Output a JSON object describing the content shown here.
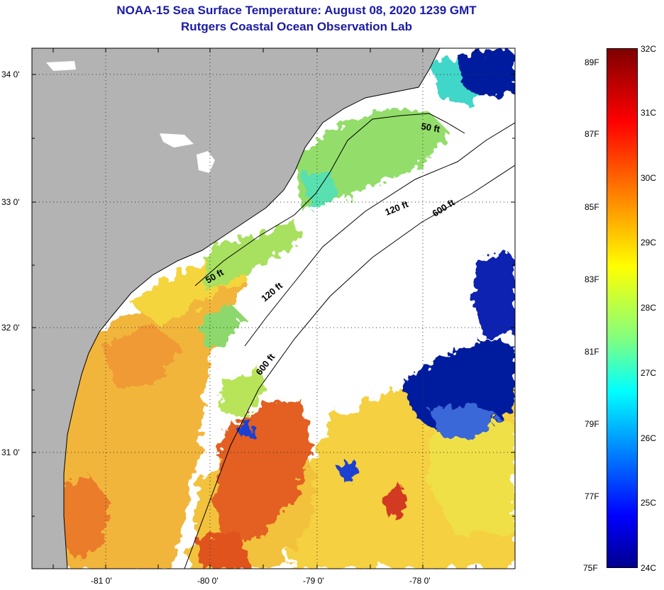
{
  "title": {
    "line1": "NOAA-15 Sea Surface Temperature:  August 08, 2020 1239 GMT",
    "line2": "Rutgers Coastal Ocean Observation Lab"
  },
  "map": {
    "lat_labels": [
      "34 0'",
      "33 0'",
      "32 0'",
      "31 0'"
    ],
    "lon_labels": [
      "-81 0'",
      "-80 0'",
      "-79 0'",
      "-78 0'"
    ],
    "depth_labels": [
      "50 ft",
      "50 ft",
      "120 ft",
      "120 ft",
      "600 ft",
      "600 ft"
    ],
    "colors": {
      "land": "#b3b3b3",
      "cloud": "#ffffff",
      "warm": "#f2b53a",
      "hot": "#e05a23",
      "mid": "#f5e43c",
      "cool": "#8fdc6e",
      "cold": "#001a9e",
      "cyan": "#3fd6c9"
    }
  },
  "colorbar": {
    "fahrenheit_labels": [
      "89F",
      "87F",
      "85F",
      "83F",
      "81F",
      "79F",
      "77F",
      "75F"
    ],
    "celsius_labels": [
      "32C",
      "31C",
      "30C",
      "29C",
      "28C",
      "27C",
      "26C",
      "25C",
      "24C"
    ],
    "range_f": [
      75,
      89.6
    ],
    "range_c": [
      24,
      32
    ]
  }
}
